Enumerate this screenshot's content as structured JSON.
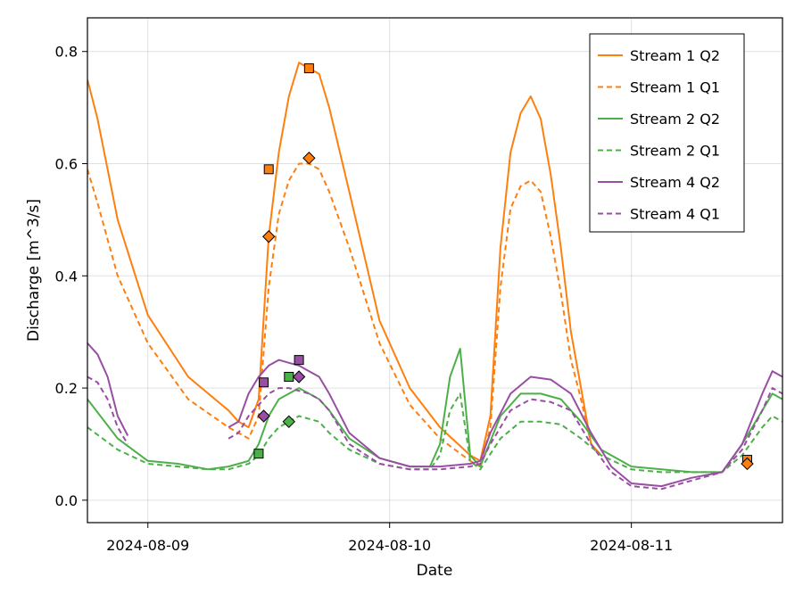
{
  "chart_data": {
    "type": "line",
    "xlabel": "Date",
    "ylabel": "Discharge [m^3/s]",
    "xlim": [
      "2024-08-08 18:00",
      "2024-08-11 15:00"
    ],
    "ylim": [
      -0.04,
      0.86
    ],
    "x_ticks": [
      {
        "value": "2024-08-09 00:00",
        "label": "2024-08-09"
      },
      {
        "value": "2024-08-10 00:00",
        "label": "2024-08-10"
      },
      {
        "value": "2024-08-11 00:00",
        "label": "2024-08-11"
      }
    ],
    "y_ticks": [
      {
        "value": 0.0,
        "label": "0.0"
      },
      {
        "value": 0.2,
        "label": "0.2"
      },
      {
        "value": 0.4,
        "label": "0.4"
      },
      {
        "value": 0.6,
        "label": "0.6"
      },
      {
        "value": 0.8,
        "label": "0.8"
      }
    ],
    "grid": true,
    "legend_position": "top-right",
    "series": [
      {
        "name": "Stream 1 Q2",
        "color": "#ff7f0e",
        "dash": "solid",
        "x": [
          "2024-08-08 18:00",
          "2024-08-08 19:00",
          "2024-08-08 21:00",
          "2024-08-09 00:00",
          "2024-08-09 04:00",
          "2024-08-09 08:00",
          "2024-08-09 09:00",
          "2024-08-09 10:00",
          "2024-08-09 11:00",
          "2024-08-09 12:00",
          "2024-08-09 13:00",
          "2024-08-09 14:00",
          "2024-08-09 15:00",
          "2024-08-09 16:00",
          "2024-08-09 17:00",
          "2024-08-09 18:00",
          "2024-08-09 20:00",
          "2024-08-09 23:00",
          "2024-08-10 02:00",
          "2024-08-10 05:00",
          "2024-08-10 08:00",
          "2024-08-10 09:00",
          "2024-08-10 10:00",
          "2024-08-10 11:00",
          "2024-08-10 12:00",
          "2024-08-10 13:00",
          "2024-08-10 14:00",
          "2024-08-10 15:00",
          "2024-08-10 16:00",
          "2024-08-10 17:00",
          "2024-08-10 18:00",
          "2024-08-10 19:00",
          "2024-08-10 20:00",
          "2024-08-10 21:00"
        ],
        "y": [
          0.75,
          0.68,
          0.5,
          0.33,
          0.22,
          0.16,
          0.14,
          0.13,
          0.18,
          0.47,
          0.62,
          0.72,
          0.78,
          0.77,
          0.76,
          0.7,
          0.55,
          0.32,
          0.2,
          0.13,
          0.08,
          0.07,
          0.15,
          0.45,
          0.62,
          0.69,
          0.72,
          0.68,
          0.58,
          0.45,
          0.3,
          0.2,
          0.1,
          0.08
        ]
      },
      {
        "name": "Stream 1 Q1",
        "color": "#ff7f0e",
        "dash": "dashed",
        "x": [
          "2024-08-08 18:00",
          "2024-08-08 19:00",
          "2024-08-08 21:00",
          "2024-08-09 00:00",
          "2024-08-09 04:00",
          "2024-08-09 08:00",
          "2024-08-09 09:00",
          "2024-08-09 10:00",
          "2024-08-09 11:00",
          "2024-08-09 12:00",
          "2024-08-09 13:00",
          "2024-08-09 14:00",
          "2024-08-09 15:00",
          "2024-08-09 16:00",
          "2024-08-09 17:00",
          "2024-08-09 18:00",
          "2024-08-09 20:00",
          "2024-08-09 23:00",
          "2024-08-10 02:00",
          "2024-08-10 05:00",
          "2024-08-10 08:00",
          "2024-08-10 09:00",
          "2024-08-10 10:00",
          "2024-08-10 11:00",
          "2024-08-10 12:00",
          "2024-08-10 13:00",
          "2024-08-10 14:00",
          "2024-08-10 15:00",
          "2024-08-10 16:00",
          "2024-08-10 17:00",
          "2024-08-10 18:00",
          "2024-08-10 19:00",
          "2024-08-10 20:00",
          "2024-08-10 21:00"
        ],
        "y": [
          0.59,
          0.53,
          0.4,
          0.28,
          0.18,
          0.13,
          0.12,
          0.11,
          0.15,
          0.38,
          0.51,
          0.57,
          0.6,
          0.6,
          0.59,
          0.55,
          0.45,
          0.28,
          0.17,
          0.11,
          0.07,
          0.06,
          0.13,
          0.38,
          0.52,
          0.56,
          0.57,
          0.55,
          0.47,
          0.37,
          0.25,
          0.18,
          0.1,
          0.08
        ]
      },
      {
        "name": "Stream 2 Q2",
        "color": "#4daf4a",
        "dash": "solid",
        "x": [
          "2024-08-08 18:00",
          "2024-08-08 21:00",
          "2024-08-09 00:00",
          "2024-08-09 03:00",
          "2024-08-09 06:00",
          "2024-08-09 08:00",
          "2024-08-09 09:00",
          "2024-08-09 10:00",
          "2024-08-09 11:00",
          "2024-08-09 12:00",
          "2024-08-09 13:00",
          "2024-08-09 14:00",
          "2024-08-09 15:00",
          "2024-08-09 16:00",
          "2024-08-09 17:00",
          "2024-08-09 18:00",
          "2024-08-09 20:00",
          "2024-08-09 23:00",
          "2024-08-10 02:00",
          "2024-08-10 04:00",
          "2024-08-10 05:00",
          "2024-08-10 06:00",
          "2024-08-10 07:00",
          "2024-08-10 08:00",
          "2024-08-10 09:00",
          "2024-08-10 11:00",
          "2024-08-10 13:00",
          "2024-08-10 15:00",
          "2024-08-10 17:00",
          "2024-08-10 19:00",
          "2024-08-10 21:00",
          "2024-08-11 00:00",
          "2024-08-11 03:00",
          "2024-08-11 06:00",
          "2024-08-11 09:00",
          "2024-08-11 11:00",
          "2024-08-11 13:00",
          "2024-08-11 14:00",
          "2024-08-11 15:00"
        ],
        "y": [
          0.18,
          0.11,
          0.07,
          0.065,
          0.055,
          0.06,
          0.065,
          0.07,
          0.1,
          0.15,
          0.18,
          0.19,
          0.2,
          0.19,
          0.18,
          0.16,
          0.11,
          0.075,
          0.06,
          0.06,
          0.1,
          0.22,
          0.27,
          0.08,
          0.06,
          0.15,
          0.19,
          0.19,
          0.18,
          0.14,
          0.09,
          0.06,
          0.055,
          0.05,
          0.05,
          0.1,
          0.16,
          0.19,
          0.18
        ]
      },
      {
        "name": "Stream 2 Q1",
        "color": "#4daf4a",
        "dash": "dashed",
        "x": [
          "2024-08-08 18:00",
          "2024-08-08 21:00",
          "2024-08-09 00:00",
          "2024-08-09 03:00",
          "2024-08-09 06:00",
          "2024-08-09 08:00",
          "2024-08-09 09:00",
          "2024-08-09 10:00",
          "2024-08-09 11:00",
          "2024-08-09 12:00",
          "2024-08-09 13:00",
          "2024-08-09 14:00",
          "2024-08-09 15:00",
          "2024-08-09 16:00",
          "2024-08-09 17:00",
          "2024-08-09 18:00",
          "2024-08-09 20:00",
          "2024-08-09 23:00",
          "2024-08-10 02:00",
          "2024-08-10 04:00",
          "2024-08-10 05:00",
          "2024-08-10 06:00",
          "2024-08-10 07:00",
          "2024-08-10 08:00",
          "2024-08-10 09:00",
          "2024-08-10 11:00",
          "2024-08-10 13:00",
          "2024-08-10 15:00",
          "2024-08-10 17:00",
          "2024-08-10 19:00",
          "2024-08-10 21:00",
          "2024-08-11 00:00",
          "2024-08-11 03:00",
          "2024-08-11 06:00",
          "2024-08-11 09:00",
          "2024-08-11 11:00",
          "2024-08-11 13:00",
          "2024-08-11 14:00",
          "2024-08-11 15:00"
        ],
        "y": [
          0.13,
          0.09,
          0.065,
          0.06,
          0.055,
          0.055,
          0.06,
          0.065,
          0.08,
          0.11,
          0.13,
          0.14,
          0.15,
          0.145,
          0.14,
          0.12,
          0.09,
          0.065,
          0.055,
          0.055,
          0.08,
          0.16,
          0.19,
          0.07,
          0.055,
          0.11,
          0.14,
          0.14,
          0.135,
          0.11,
          0.08,
          0.055,
          0.05,
          0.05,
          0.05,
          0.08,
          0.13,
          0.15,
          0.14
        ]
      },
      {
        "name": "Stream 4 Q2",
        "color": "#984ea3",
        "dash": "solid",
        "segments": [
          {
            "x": [
              "2024-08-08 18:00",
              "2024-08-08 19:00",
              "2024-08-08 20:00",
              "2024-08-08 21:00",
              "2024-08-08 22:00"
            ],
            "y": [
              0.28,
              0.26,
              0.22,
              0.15,
              0.115
            ]
          },
          {
            "x": [
              "2024-08-09 08:00",
              "2024-08-09 09:00",
              "2024-08-09 10:00",
              "2024-08-09 11:00",
              "2024-08-09 12:00",
              "2024-08-09 13:00",
              "2024-08-09 14:00",
              "2024-08-09 15:00",
              "2024-08-09 16:00",
              "2024-08-09 17:00",
              "2024-08-09 18:00",
              "2024-08-09 20:00",
              "2024-08-09 23:00",
              "2024-08-10 02:00",
              "2024-08-10 05:00",
              "2024-08-10 08:00",
              "2024-08-10 09:00",
              "2024-08-10 10:00",
              "2024-08-10 12:00",
              "2024-08-10 14:00",
              "2024-08-10 16:00",
              "2024-08-10 18:00",
              "2024-08-10 20:00",
              "2024-08-10 22:00",
              "2024-08-11 00:00",
              "2024-08-11 03:00",
              "2024-08-11 06:00",
              "2024-08-11 09:00",
              "2024-08-11 11:00",
              "2024-08-11 13:00",
              "2024-08-11 14:00",
              "2024-08-11 15:00"
            ],
            "y": [
              0.13,
              0.14,
              0.19,
              0.22,
              0.24,
              0.25,
              0.245,
              0.24,
              0.23,
              0.22,
              0.19,
              0.12,
              0.075,
              0.06,
              0.06,
              0.065,
              0.07,
              0.12,
              0.19,
              0.22,
              0.215,
              0.19,
              0.12,
              0.06,
              0.03,
              0.025,
              0.04,
              0.05,
              0.1,
              0.19,
              0.23,
              0.22
            ]
          }
        ]
      },
      {
        "name": "Stream 4 Q1",
        "color": "#984ea3",
        "dash": "dashed",
        "segments": [
          {
            "x": [
              "2024-08-08 18:00",
              "2024-08-08 19:00",
              "2024-08-08 20:00",
              "2024-08-08 21:00",
              "2024-08-08 22:00"
            ],
            "y": [
              0.22,
              0.21,
              0.18,
              0.13,
              0.1
            ]
          },
          {
            "x": [
              "2024-08-09 08:00",
              "2024-08-09 09:00",
              "2024-08-09 10:00",
              "2024-08-09 11:00",
              "2024-08-09 12:00",
              "2024-08-09 13:00",
              "2024-08-09 14:00",
              "2024-08-09 15:00",
              "2024-08-09 16:00",
              "2024-08-09 17:00",
              "2024-08-09 18:00",
              "2024-08-09 20:00",
              "2024-08-09 23:00",
              "2024-08-10 02:00",
              "2024-08-10 05:00",
              "2024-08-10 08:00",
              "2024-08-10 09:00",
              "2024-08-10 10:00",
              "2024-08-10 12:00",
              "2024-08-10 14:00",
              "2024-08-10 16:00",
              "2024-08-10 18:00",
              "2024-08-10 20:00",
              "2024-08-10 22:00",
              "2024-08-11 00:00",
              "2024-08-11 03:00",
              "2024-08-11 06:00",
              "2024-08-11 09:00",
              "2024-08-11 11:00",
              "2024-08-11 13:00",
              "2024-08-11 14:00",
              "2024-08-11 15:00"
            ],
            "y": [
              0.11,
              0.12,
              0.15,
              0.17,
              0.19,
              0.2,
              0.2,
              0.195,
              0.19,
              0.18,
              0.16,
              0.1,
              0.065,
              0.055,
              0.055,
              0.06,
              0.065,
              0.1,
              0.16,
              0.18,
              0.175,
              0.16,
              0.1,
              0.05,
              0.025,
              0.02,
              0.035,
              0.05,
              0.09,
              0.16,
              0.2,
              0.19
            ]
          }
        ]
      }
    ],
    "markers": [
      {
        "series": "Stream 1 Q2",
        "shape": "square",
        "x": "2024-08-09 12:00",
        "y": 0.59
      },
      {
        "series": "Stream 1 Q2",
        "shape": "square",
        "x": "2024-08-09 16:00",
        "y": 0.77
      },
      {
        "series": "Stream 1 Q2",
        "shape": "square",
        "x": "2024-08-11 11:30",
        "y": 0.072
      },
      {
        "series": "Stream 1 Q1",
        "shape": "diamond",
        "x": "2024-08-09 12:00",
        "y": 0.47
      },
      {
        "series": "Stream 1 Q1",
        "shape": "diamond",
        "x": "2024-08-09 16:00",
        "y": 0.61
      },
      {
        "series": "Stream 1 Q1",
        "shape": "diamond",
        "x": "2024-08-11 11:30",
        "y": 0.065
      },
      {
        "series": "Stream 2 Q2",
        "shape": "square",
        "x": "2024-08-09 11:00",
        "y": 0.083
      },
      {
        "series": "Stream 2 Q2",
        "shape": "square",
        "x": "2024-08-09 14:00",
        "y": 0.22
      },
      {
        "series": "Stream 2 Q1",
        "shape": "diamond",
        "x": "2024-08-09 14:00",
        "y": 0.14
      },
      {
        "series": "Stream 4 Q2",
        "shape": "square",
        "x": "2024-08-09 11:30",
        "y": 0.21
      },
      {
        "series": "Stream 4 Q2",
        "shape": "square",
        "x": "2024-08-09 15:00",
        "y": 0.25
      },
      {
        "series": "Stream 4 Q1",
        "shape": "diamond",
        "x": "2024-08-09 11:30",
        "y": 0.15
      },
      {
        "series": "Stream 4 Q1",
        "shape": "diamond",
        "x": "2024-08-09 15:00",
        "y": 0.22
      }
    ]
  }
}
